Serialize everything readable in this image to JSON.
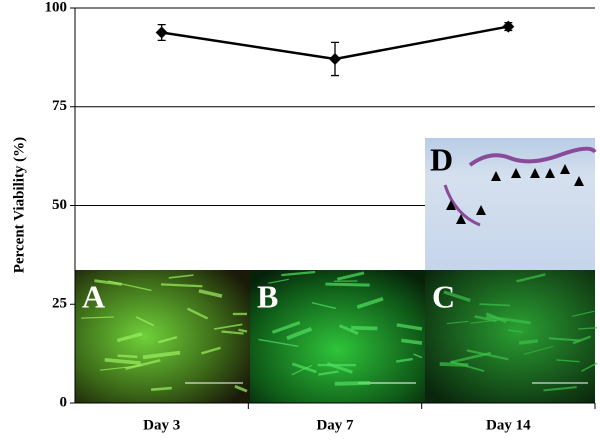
{
  "chart_data": {
    "type": "line",
    "y_label": "Percent Viability (%)",
    "categories": [
      "Day 3",
      "Day 7",
      "Day 14"
    ],
    "values": [
      93.8,
      87.1,
      95.3
    ],
    "errors": [
      2,
      4.2,
      1
    ],
    "color": "#000000",
    "ylim": [
      0,
      100
    ],
    "yticks": [
      0,
      25,
      50,
      75,
      100
    ],
    "grid": true
  },
  "insets": [
    {
      "label": "A"
    },
    {
      "label": "B"
    },
    {
      "label": "C"
    },
    {
      "label": "D"
    }
  ]
}
